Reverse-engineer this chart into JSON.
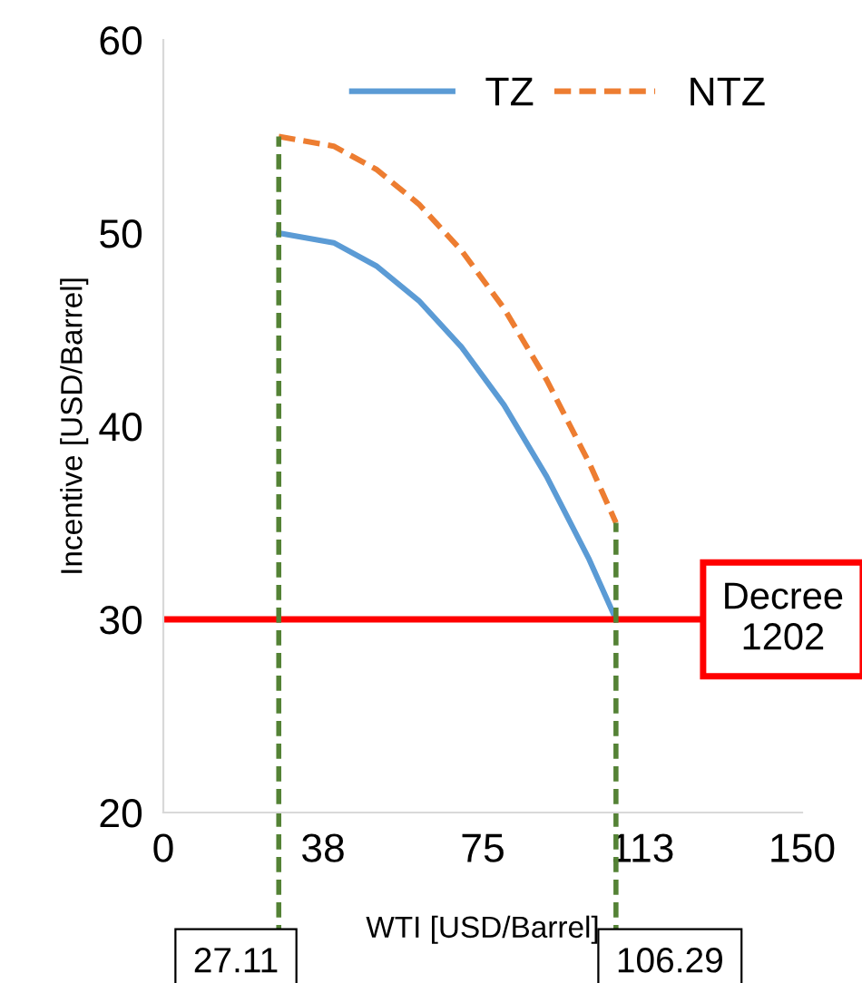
{
  "chart_data": {
    "type": "line",
    "xlabel": "WTI [USD/Barrel]",
    "ylabel": "Incentive [USD/Barrel]",
    "xlim": [
      0,
      150
    ],
    "xticks": [
      0,
      {
        "value": 37.5,
        "label": "38"
      },
      75,
      {
        "value": 112.5,
        "label": "113"
      },
      150
    ],
    "ylim": [
      20,
      60
    ],
    "yticks": [
      20,
      30,
      40,
      50,
      60
    ],
    "grid": false,
    "legend": "top right",
    "x": [
      27.11,
      40,
      50,
      60,
      70,
      80,
      90,
      100,
      106.29
    ],
    "series": [
      {
        "name": "TZ",
        "color": "#5b9bd5",
        "line_style": "solid",
        "values": [
          50,
          49.5,
          48.3,
          46.5,
          44.1,
          41.1,
          37.4,
          33.1,
          30
        ]
      },
      {
        "name": "NTZ",
        "color": "#ed7d31",
        "line_style": "dashed",
        "values": [
          55,
          54.5,
          53.3,
          51.5,
          49.1,
          46.1,
          42.4,
          38.1,
          35
        ]
      }
    ],
    "ref_lines": [
      {
        "axis": "y",
        "value": 30,
        "label": "Decree 1202",
        "color": "#ff0000",
        "line_style": "solid"
      },
      {
        "axis": "x",
        "value": 27.11,
        "label": "27.11",
        "color": "#548235",
        "line_style": "dashed"
      },
      {
        "axis": "x",
        "value": 106.29,
        "label": "106.29",
        "color": "#548235",
        "line_style": "dashed"
      }
    ]
  }
}
